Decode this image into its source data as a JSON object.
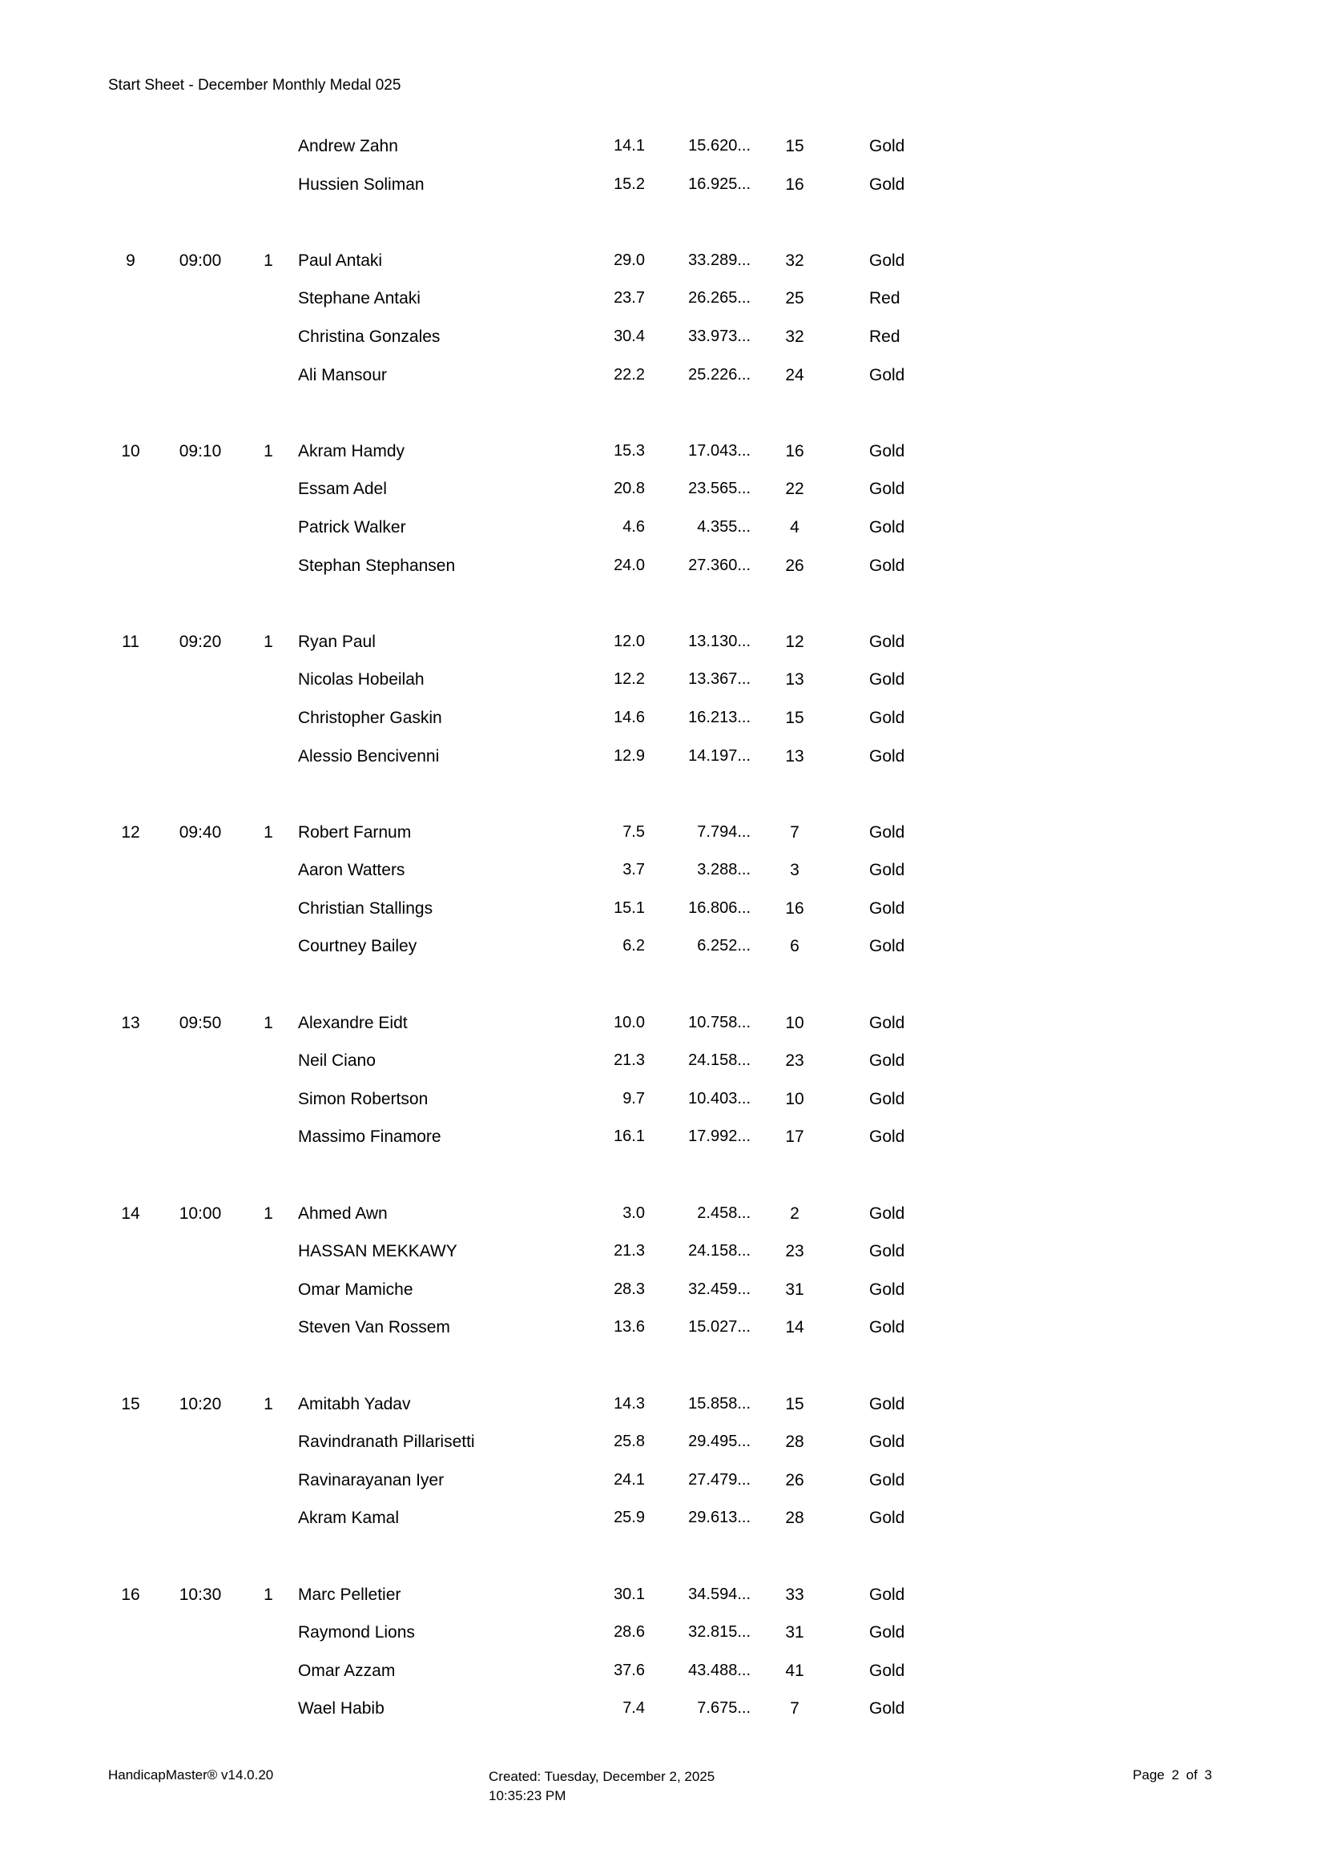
{
  "page_title": "Start Sheet - December Monthly Medal 025",
  "table": {
    "groups": [
      {
        "group": "",
        "time": "",
        "tee": "",
        "players": [
          {
            "name": "Andrew Zahn",
            "handicap_index": "14.1",
            "course_handicap": "15.620...",
            "playing_handicap": "15",
            "tees": "Gold"
          },
          {
            "name": "Hussien Soliman",
            "handicap_index": "15.2",
            "course_handicap": "16.925...",
            "playing_handicap": "16",
            "tees": "Gold"
          }
        ]
      },
      {
        "group": "9",
        "time": "09:00",
        "tee": "1",
        "players": [
          {
            "name": "Paul Antaki",
            "handicap_index": "29.0",
            "course_handicap": "33.289...",
            "playing_handicap": "32",
            "tees": "Gold"
          },
          {
            "name": "Stephane Antaki",
            "handicap_index": "23.7",
            "course_handicap": "26.265...",
            "playing_handicap": "25",
            "tees": "Red"
          },
          {
            "name": "Christina Gonzales",
            "handicap_index": "30.4",
            "course_handicap": "33.973...",
            "playing_handicap": "32",
            "tees": "Red"
          },
          {
            "name": "Ali Mansour",
            "handicap_index": "22.2",
            "course_handicap": "25.226...",
            "playing_handicap": "24",
            "tees": "Gold"
          }
        ]
      },
      {
        "group": "10",
        "time": "09:10",
        "tee": "1",
        "players": [
          {
            "name": "Akram Hamdy",
            "handicap_index": "15.3",
            "course_handicap": "17.043...",
            "playing_handicap": "16",
            "tees": "Gold"
          },
          {
            "name": "Essam Adel",
            "handicap_index": "20.8",
            "course_handicap": "23.565...",
            "playing_handicap": "22",
            "tees": "Gold"
          },
          {
            "name": "Patrick Walker",
            "handicap_index": "4.6",
            "course_handicap": "4.355...",
            "playing_handicap": "4",
            "tees": "Gold"
          },
          {
            "name": "Stephan Stephansen",
            "handicap_index": "24.0",
            "course_handicap": "27.360...",
            "playing_handicap": "26",
            "tees": "Gold"
          }
        ]
      },
      {
        "group": "11",
        "time": "09:20",
        "tee": "1",
        "players": [
          {
            "name": "Ryan Paul",
            "handicap_index": "12.0",
            "course_handicap": "13.130...",
            "playing_handicap": "12",
            "tees": "Gold"
          },
          {
            "name": "Nicolas Hobeilah",
            "handicap_index": "12.2",
            "course_handicap": "13.367...",
            "playing_handicap": "13",
            "tees": "Gold"
          },
          {
            "name": "Christopher Gaskin",
            "handicap_index": "14.6",
            "course_handicap": "16.213...",
            "playing_handicap": "15",
            "tees": "Gold"
          },
          {
            "name": "Alessio Bencivenni",
            "handicap_index": "12.9",
            "course_handicap": "14.197...",
            "playing_handicap": "13",
            "tees": "Gold"
          }
        ]
      },
      {
        "group": "12",
        "time": "09:40",
        "tee": "1",
        "players": [
          {
            "name": "Robert Farnum",
            "handicap_index": "7.5",
            "course_handicap": "7.794...",
            "playing_handicap": "7",
            "tees": "Gold"
          },
          {
            "name": "Aaron Watters",
            "handicap_index": "3.7",
            "course_handicap": "3.288...",
            "playing_handicap": "3",
            "tees": "Gold"
          },
          {
            "name": "Christian Stallings",
            "handicap_index": "15.1",
            "course_handicap": "16.806...",
            "playing_handicap": "16",
            "tees": "Gold"
          },
          {
            "name": "Courtney Bailey",
            "handicap_index": "6.2",
            "course_handicap": "6.252...",
            "playing_handicap": "6",
            "tees": "Gold"
          }
        ]
      },
      {
        "group": "13",
        "time": "09:50",
        "tee": "1",
        "players": [
          {
            "name": "Alexandre Eidt",
            "handicap_index": "10.0",
            "course_handicap": "10.758...",
            "playing_handicap": "10",
            "tees": "Gold"
          },
          {
            "name": "Neil Ciano",
            "handicap_index": "21.3",
            "course_handicap": "24.158...",
            "playing_handicap": "23",
            "tees": "Gold"
          },
          {
            "name": "Simon Robertson",
            "handicap_index": "9.7",
            "course_handicap": "10.403...",
            "playing_handicap": "10",
            "tees": "Gold"
          },
          {
            "name": "Massimo Finamore",
            "handicap_index": "16.1",
            "course_handicap": "17.992...",
            "playing_handicap": "17",
            "tees": "Gold"
          }
        ]
      },
      {
        "group": "14",
        "time": "10:00",
        "tee": "1",
        "players": [
          {
            "name": "Ahmed Awn",
            "handicap_index": "3.0",
            "course_handicap": "2.458...",
            "playing_handicap": "2",
            "tees": "Gold"
          },
          {
            "name": "HASSAN MEKKAWY",
            "handicap_index": "21.3",
            "course_handicap": "24.158...",
            "playing_handicap": "23",
            "tees": "Gold"
          },
          {
            "name": "Omar Mamiche",
            "handicap_index": "28.3",
            "course_handicap": "32.459...",
            "playing_handicap": "31",
            "tees": "Gold"
          },
          {
            "name": "Steven Van Rossem",
            "handicap_index": "13.6",
            "course_handicap": "15.027...",
            "playing_handicap": "14",
            "tees": "Gold"
          }
        ]
      },
      {
        "group": "15",
        "time": "10:20",
        "tee": "1",
        "players": [
          {
            "name": "Amitabh Yadav",
            "handicap_index": "14.3",
            "course_handicap": "15.858...",
            "playing_handicap": "15",
            "tees": "Gold"
          },
          {
            "name": "Ravindranath Pillarisetti",
            "handicap_index": "25.8",
            "course_handicap": "29.495...",
            "playing_handicap": "28",
            "tees": "Gold"
          },
          {
            "name": "Ravinarayanan Iyer",
            "handicap_index": "24.1",
            "course_handicap": "27.479...",
            "playing_handicap": "26",
            "tees": "Gold"
          },
          {
            "name": "Akram Kamal",
            "handicap_index": "25.9",
            "course_handicap": "29.613...",
            "playing_handicap": "28",
            "tees": "Gold"
          }
        ]
      },
      {
        "group": "16",
        "time": "10:30",
        "tee": "1",
        "players": [
          {
            "name": "Marc Pelletier",
            "handicap_index": "30.1",
            "course_handicap": "34.594...",
            "playing_handicap": "33",
            "tees": "Gold"
          },
          {
            "name": "Raymond Lions",
            "handicap_index": "28.6",
            "course_handicap": "32.815...",
            "playing_handicap": "31",
            "tees": "Gold"
          },
          {
            "name": "Omar Azzam",
            "handicap_index": "37.6",
            "course_handicap": "43.488...",
            "playing_handicap": "41",
            "tees": "Gold"
          },
          {
            "name": "Wael Habib",
            "handicap_index": "7.4",
            "course_handicap": "7.675...",
            "playing_handicap": "7",
            "tees": "Gold"
          }
        ]
      }
    ]
  },
  "footer": {
    "app_version": "HandicapMaster® v14.0.20",
    "created_line1": "Created: Tuesday, December 2, 2025",
    "created_line2": "10:35:23 PM",
    "page_number": "Page 2 of 3"
  }
}
